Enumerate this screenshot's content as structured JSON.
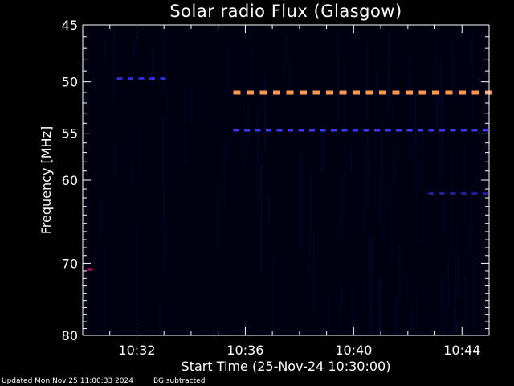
{
  "chart_data": {
    "type": "heatmap",
    "title": "Solar radio Flux (Glasgow)",
    "xlabel": "Start Time (25-Nov-24 10:30:00)",
    "ylabel": "Frequency [MHz]",
    "x_range_min": [
      0,
      15
    ],
    "y_range_mhz": [
      45,
      80
    ],
    "y_scale": "log",
    "x_ticks": [
      {
        "value": 2,
        "label": "10:32"
      },
      {
        "value": 6,
        "label": "10:36"
      },
      {
        "value": 10,
        "label": "10:40"
      },
      {
        "value": 14,
        "label": "10:44"
      }
    ],
    "y_ticks": [
      {
        "value": 45,
        "label": "45"
      },
      {
        "value": 50,
        "label": "50"
      },
      {
        "value": 55,
        "label": "55"
      },
      {
        "value": 60,
        "label": "60"
      },
      {
        "value": 70,
        "label": "70"
      },
      {
        "value": 80,
        "label": "80"
      }
    ],
    "features": [
      {
        "name": "strong-band",
        "freq": 51.0,
        "t_start": 5.5,
        "t_end": 15,
        "color": "#ff9a50"
      },
      {
        "name": "band-54",
        "freq": 54.7,
        "t_start": 5.5,
        "t_end": 15,
        "color": "#3a3aff"
      },
      {
        "name": "band-49",
        "freq": 49.7,
        "t_start": 1.2,
        "t_end": 3.2,
        "color": "#2d2dd0"
      },
      {
        "name": "band-61",
        "freq": 61.5,
        "t_start": 12.7,
        "t_end": 15,
        "color": "#2020a0"
      },
      {
        "name": "spot-70",
        "freq": 70.8,
        "t_start": 0.1,
        "t_end": 0.3,
        "color": "#c01080"
      }
    ]
  },
  "footer": {
    "updated": "Updated Mon Nov 25 11:00:33 2024",
    "bg": "BG subtracted"
  }
}
